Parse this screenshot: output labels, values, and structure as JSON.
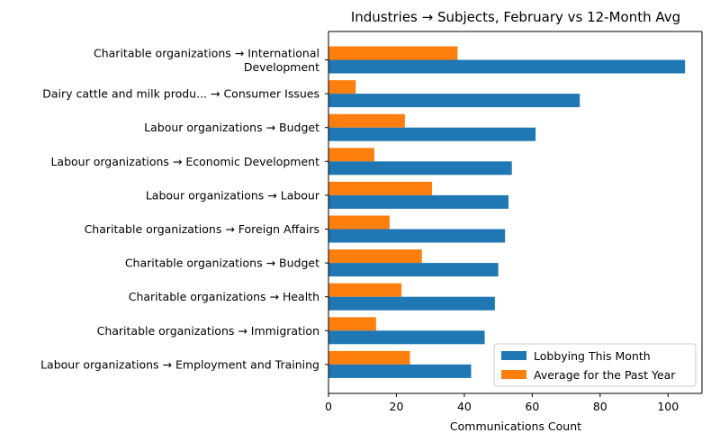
{
  "chart_data": {
    "type": "bar",
    "orientation": "horizontal",
    "title": "Industries → Subjects, February vs 12-Month Avg",
    "xlabel": "Communications Count",
    "ylabel": "",
    "xlim": [
      0,
      110
    ],
    "xticks": [
      0,
      20,
      40,
      60,
      80,
      100
    ],
    "grid": false,
    "legend_position": "lower-right",
    "categories": [
      [
        "Charitable organizations → International",
        "Development"
      ],
      [
        "Dairy cattle and milk produ... → Consumer Issues"
      ],
      [
        "Labour organizations → Budget"
      ],
      [
        "Labour organizations → Economic Development"
      ],
      [
        "Labour organizations → Labour"
      ],
      [
        "Charitable organizations → Foreign Affairs"
      ],
      [
        "Charitable organizations → Budget"
      ],
      [
        "Charitable organizations → Health"
      ],
      [
        "Charitable organizations → Immigration"
      ],
      [
        "Labour organizations → Employment and Training"
      ]
    ],
    "series": [
      {
        "name": "Lobbying This Month",
        "color": "#1f77b4",
        "values": [
          105,
          74,
          61,
          54,
          53,
          52,
          50,
          49,
          46,
          42
        ]
      },
      {
        "name": "Average for the Past Year",
        "color": "#ff7f0e",
        "values": [
          38,
          8,
          22.5,
          13.5,
          30.5,
          18,
          27.5,
          21.5,
          14,
          24
        ]
      }
    ]
  }
}
